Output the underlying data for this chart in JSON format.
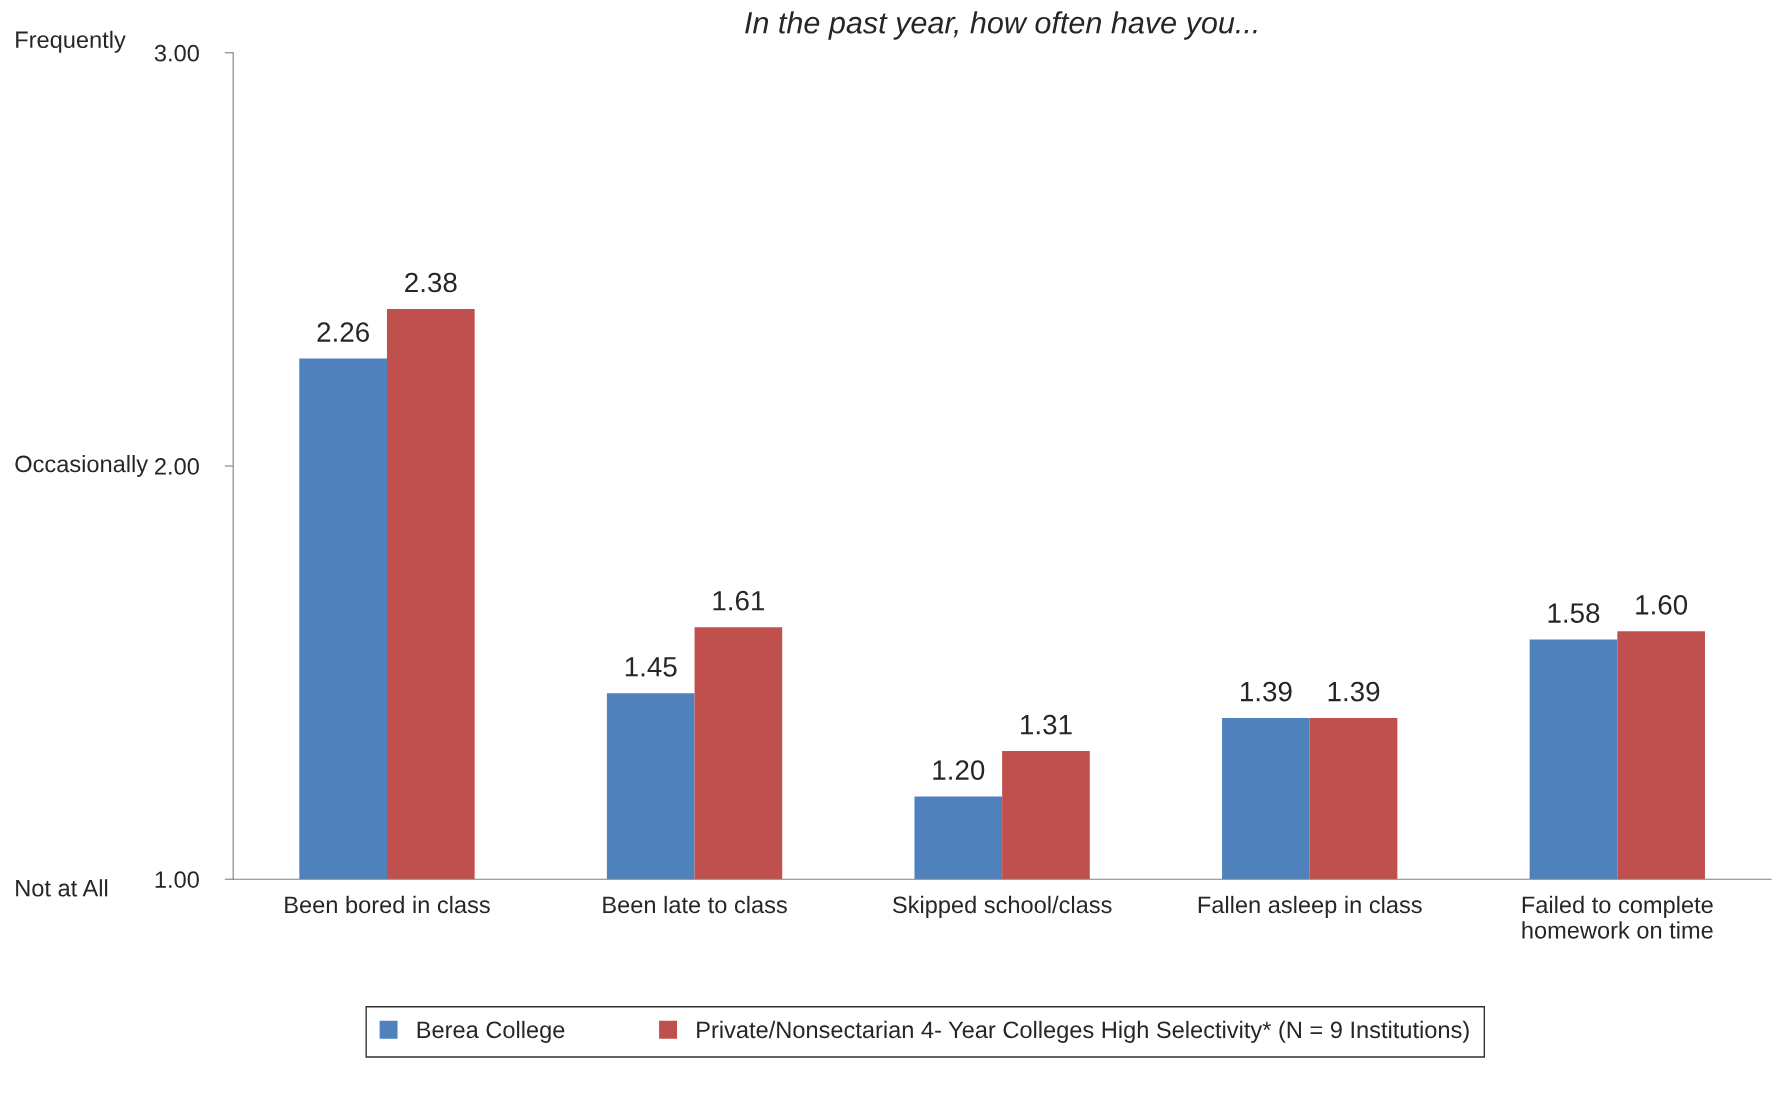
{
  "chart_data": {
    "type": "bar",
    "title": "In the past year, how often have you...",
    "categories": [
      "Been bored in class",
      "Been late to class",
      "Skipped school/class",
      "Fallen asleep in class",
      "Failed to complete\nhomework on time"
    ],
    "series": [
      {
        "name": "Berea College",
        "color": "#4f81bd",
        "values": [
          2.26,
          1.45,
          1.2,
          1.39,
          1.58
        ],
        "value_labels": [
          "2.26",
          "1.45",
          "1.20",
          "1.39",
          "1.58"
        ]
      },
      {
        "name": "Private/Nonsectarian 4- Year Colleges High Selectivity* (N = 9 Institutions)",
        "color": "#c0504d",
        "values": [
          2.38,
          1.61,
          1.31,
          1.39,
          1.6
        ],
        "value_labels": [
          "2.38",
          "1.61",
          "1.31",
          "1.39",
          "1.60"
        ]
      }
    ],
    "ylim": [
      1,
      3
    ],
    "yticks": [
      {
        "value": 1,
        "label": "1.00"
      },
      {
        "value": 2,
        "label": "2.00"
      },
      {
        "value": 3,
        "label": "3.00"
      }
    ],
    "annotations": [
      "Frequently",
      "Occasionally",
      "Not at All"
    ],
    "grid": false,
    "legend": "bottom"
  }
}
